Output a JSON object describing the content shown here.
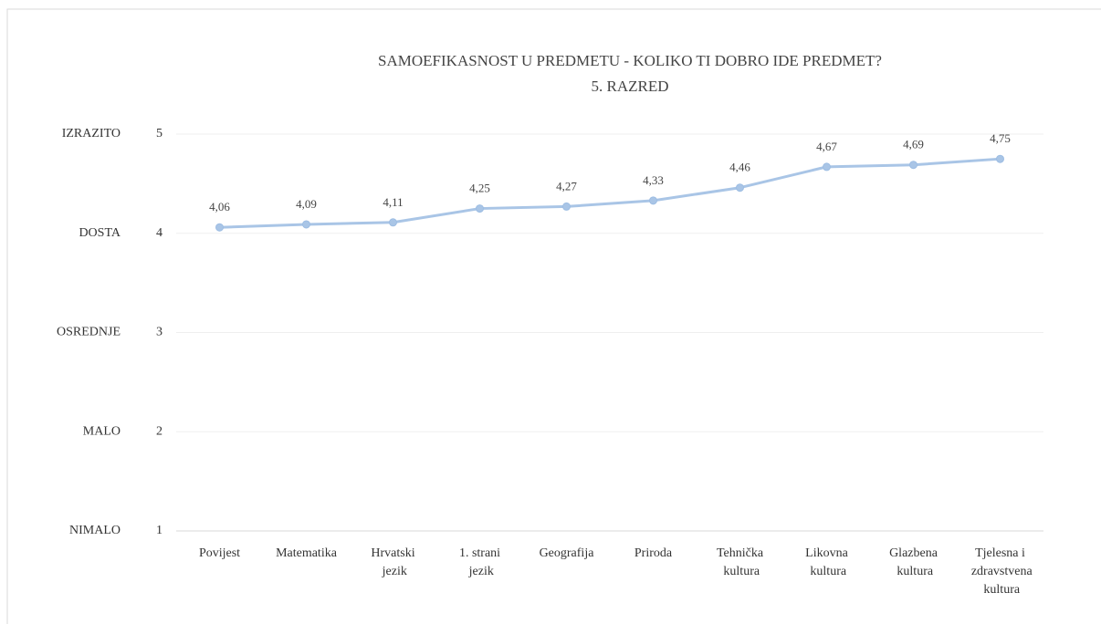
{
  "chart_data": {
    "type": "line",
    "title": "SAMOEFIKASNOST U PREDMETU - KOLIKO TI DOBRO IDE PREDMET?",
    "subtitle": "5. RAZRED",
    "categories": [
      "Povijest",
      "Matematika",
      "Hrvatski jezik",
      "1. strani jezik",
      "Geografija",
      "Priroda",
      "Tehnička kultura",
      "Likovna kultura",
      "Glazbena kultura",
      "Tjelesna i zdravstvena kultura"
    ],
    "values": [
      4.06,
      4.09,
      4.11,
      4.25,
      4.27,
      4.33,
      4.46,
      4.67,
      4.69,
      4.75
    ],
    "value_labels": [
      "4,06",
      "4,09",
      "4,11",
      "4,25",
      "4,27",
      "4,33",
      "4,46",
      "4,67",
      "4,69",
      "4,75"
    ],
    "color": "#a9c5e6",
    "ylim": [
      1,
      5
    ],
    "yticks": [
      1,
      2,
      3,
      4,
      5
    ],
    "ytick_names": [
      "NIMALO",
      "MALO",
      "OSREDNJE",
      "DOSTA",
      "IZRAZITO"
    ],
    "grid": true
  }
}
